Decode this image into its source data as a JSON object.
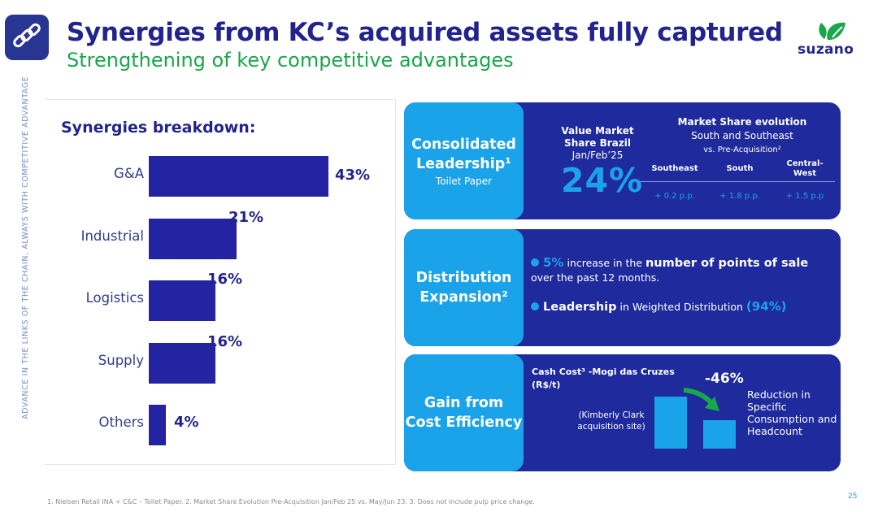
{
  "header": {
    "title": "Synergies from KC’s acquired assets fully captured",
    "subtitle": "Strengthening of key competitive advantages",
    "logo_text": "suzano"
  },
  "side_text": "advance in the links of the chain, always with competitive advantage",
  "breakdown": {
    "title": "Synergies breakdown:"
  },
  "chart_data": {
    "type": "bar",
    "orientation": "horizontal",
    "categories": [
      "G&A",
      "Industrial",
      "Logistics",
      "Supply",
      "Others"
    ],
    "values": [
      43,
      21,
      16,
      16,
      4
    ],
    "value_labels": [
      "43%",
      "21%",
      "16%",
      "16%",
      "4%"
    ],
    "title": "Synergies breakdown:",
    "unit": "%",
    "xlim": [
      0,
      43
    ],
    "grid": false,
    "legend": "none",
    "bar_color": "#2424a3"
  },
  "cards": {
    "leadership": {
      "head1": "Consolidated",
      "head2": "Leadership¹",
      "sub": "Toilet Paper",
      "vms_line1": "Value Market",
      "vms_line2": "Share Brazil",
      "vms_line3": "Jan/Feb’25",
      "value": "24%",
      "mse_title1": "Market Share evolution",
      "mse_title2": "South and Southeast",
      "mse_title3": "vs. Pre-Acquisition²",
      "regions": [
        {
          "name": "Southeast",
          "value": "+ 0.2  p.p."
        },
        {
          "name": "South",
          "value": "+ 1.8 p.p."
        },
        {
          "name": "Central-West",
          "name_line1": "Central-",
          "name_line2": "West",
          "value": "+ 1.5 p.p"
        }
      ]
    },
    "distribution": {
      "head1": "Distribution",
      "head2": "Expansion²",
      "b1_hl": "5%",
      "b1_mid": " increase in the ",
      "b1_bold": "number of points of sale",
      "b1_end": " over the past 12 months.",
      "b2_bold": "Leadership",
      "b2_mid": " in Weighted Distribution ",
      "b2_hl": "(94%)"
    },
    "cost": {
      "head1": "Gain from",
      "head2": "Cost Efficiency",
      "cash_line1": "Cash Cost³ -Mogi das Cruzes",
      "cash_line2": "(R$/t)",
      "kc_line1": "(Kimberly Clark",
      "kc_line2": "acquisition site)",
      "change": "-46%",
      "change_value": -46,
      "reduction": "Reduction in Specific Consumption and Headcount"
    }
  },
  "footnote": "1. Nielsen Retail INA + C&C – Toilet Paper. 2. Market Share Evolution Pre-Acquisition Jan/Feb 25 vs. May/Jun 23. 3. Does not include pulp price change.",
  "page_number": "25",
  "colors": {
    "navy": "#23238e",
    "green": "#1aa64a",
    "cyan": "#1aa3e8",
    "card_blue": "#1f2a9c"
  }
}
